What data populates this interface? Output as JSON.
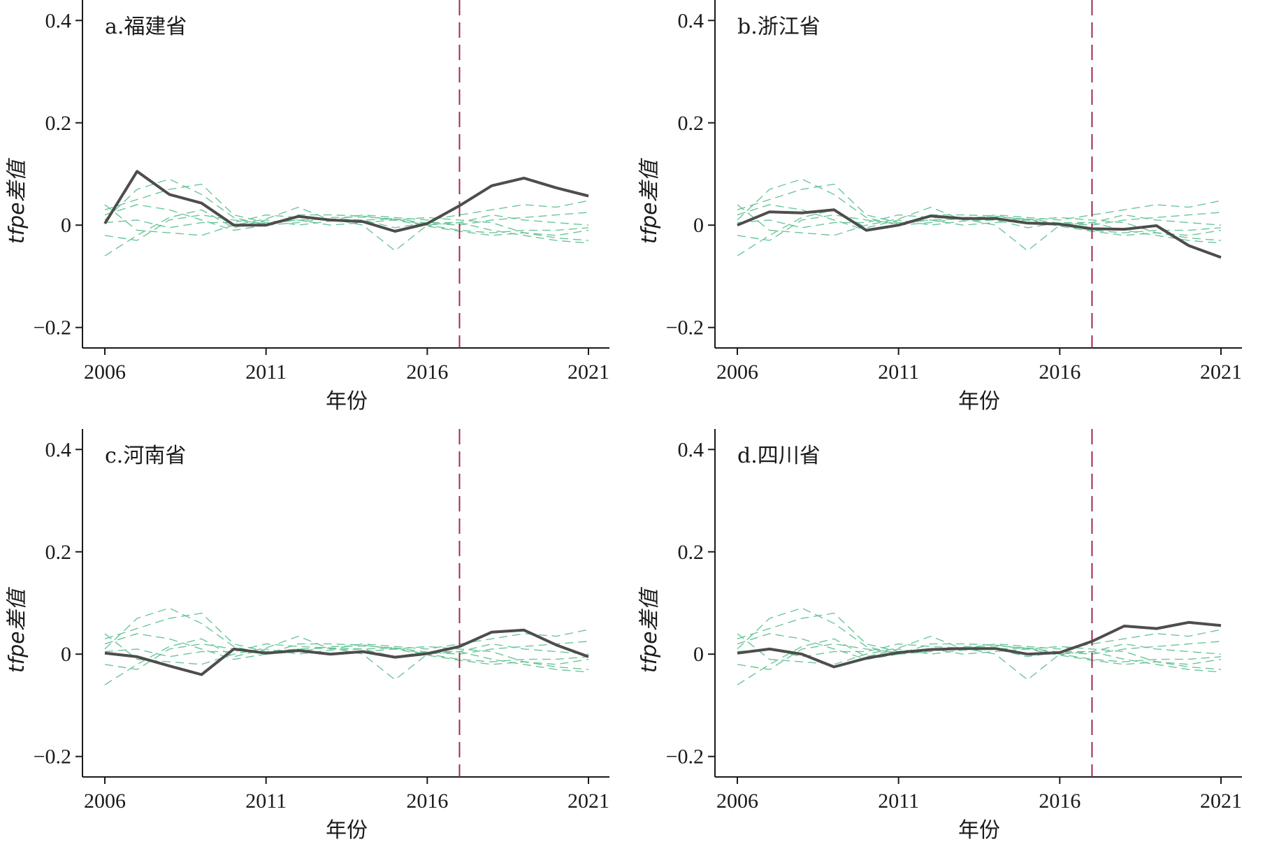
{
  "chart_data": [
    {
      "type": "line",
      "title": "a.福建省",
      "xlabel": "年份",
      "ylabel": "tfpe差值",
      "xlim": [
        2006,
        2021
      ],
      "ylim": [
        -0.24,
        0.44
      ],
      "x_ticks": [
        "2006",
        "2011",
        "2016",
        "2021"
      ],
      "y_ticks": [
        "0.4",
        "0.2",
        "0",
        "−0.2"
      ],
      "y_tick_values": [
        0.4,
        0.2,
        0,
        -0.2
      ],
      "treatment_year": 2017,
      "x": [
        2006,
        2007,
        2008,
        2009,
        2010,
        2011,
        2012,
        2013,
        2014,
        2015,
        2016,
        2017,
        2018,
        2019,
        2020,
        2021
      ],
      "series": [
        {
          "name": "福建省",
          "values": [
            0.003,
            0.105,
            0.06,
            0.043,
            0.0,
            0.0,
            0.017,
            0.01,
            0.007,
            -0.012,
            0.003,
            0.038,
            0.077,
            0.092,
            0.073,
            0.057
          ]
        }
      ],
      "placebo_series": [
        {
          "values": [
            0.03,
            0.05,
            0.07,
            0.08,
            0.02,
            0.005,
            0.01,
            0.012,
            0.01,
            0.012,
            0.004,
            0.0,
            0.01,
            0.015,
            0.02,
            0.025
          ]
        },
        {
          "values": [
            0.01,
            0.07,
            0.09,
            0.06,
            0.015,
            0.0,
            0.005,
            0.015,
            0.016,
            0.012,
            0.0,
            -0.01,
            -0.015,
            -0.01,
            -0.01,
            -0.005
          ]
        },
        {
          "values": [
            -0.02,
            -0.03,
            0.01,
            0.02,
            0.01,
            0.003,
            0.01,
            0.0,
            0.005,
            0.01,
            -0.002,
            -0.012,
            -0.02,
            -0.015,
            -0.025,
            -0.03
          ]
        },
        {
          "values": [
            0.04,
            -0.01,
            -0.015,
            -0.02,
            0.0,
            0.012,
            0.035,
            0.01,
            0.02,
            0.015,
            0.01,
            0.02,
            0.03,
            0.04,
            0.035,
            0.048
          ]
        },
        {
          "values": [
            -0.06,
            -0.02,
            0.015,
            0.03,
            -0.005,
            0.01,
            0.0,
            0.008,
            0.01,
            -0.005,
            0.005,
            0.005,
            -0.01,
            -0.02,
            -0.03,
            -0.035
          ]
        },
        {
          "values": [
            0.02,
            0.04,
            0.03,
            0.01,
            -0.01,
            0.0,
            0.02,
            0.02,
            0.018,
            0.01,
            0.015,
            0.01,
            0.005,
            -0.015,
            -0.02,
            -0.01
          ]
        },
        {
          "values": [
            0.005,
            0.01,
            -0.005,
            0.005,
            0.005,
            0.02,
            0.015,
            0.012,
            0.0,
            -0.05,
            0.0,
            0.005,
            0.02,
            0.01,
            0.005,
            0.0
          ]
        }
      ]
    },
    {
      "type": "line",
      "title": "b.浙江省",
      "xlabel": "年份",
      "ylabel": "tfpe差值",
      "xlim": [
        2006,
        2021
      ],
      "ylim": [
        -0.24,
        0.44
      ],
      "x_ticks": [
        "2006",
        "2011",
        "2016",
        "2021"
      ],
      "y_ticks": [
        "0.4",
        "0.2",
        "0",
        "−0.2"
      ],
      "y_tick_values": [
        0.4,
        0.2,
        0,
        -0.2
      ],
      "treatment_year": 2017,
      "x": [
        2006,
        2007,
        2008,
        2009,
        2010,
        2011,
        2012,
        2013,
        2014,
        2015,
        2016,
        2017,
        2018,
        2019,
        2020,
        2021
      ],
      "series": [
        {
          "name": "浙江省",
          "values": [
            0.0,
            0.026,
            0.024,
            0.03,
            -0.01,
            0.0,
            0.018,
            0.013,
            0.013,
            0.004,
            0.002,
            -0.007,
            -0.008,
            -0.001,
            -0.04,
            -0.063
          ]
        }
      ],
      "placebo_series": [
        {
          "values": [
            0.03,
            0.05,
            0.07,
            0.08,
            0.02,
            0.005,
            0.01,
            0.012,
            0.01,
            0.012,
            0.004,
            0.0,
            0.01,
            0.015,
            0.02,
            0.025
          ]
        },
        {
          "values": [
            0.01,
            0.07,
            0.09,
            0.06,
            0.015,
            0.0,
            0.005,
            0.015,
            0.016,
            0.012,
            0.0,
            -0.01,
            -0.015,
            -0.01,
            -0.01,
            -0.005
          ]
        },
        {
          "values": [
            -0.02,
            -0.03,
            0.01,
            0.02,
            0.01,
            0.003,
            0.01,
            0.0,
            0.005,
            0.01,
            -0.002,
            -0.012,
            -0.02,
            -0.015,
            -0.025,
            -0.03
          ]
        },
        {
          "values": [
            0.04,
            -0.01,
            -0.015,
            -0.02,
            0.0,
            0.012,
            0.035,
            0.01,
            0.02,
            0.015,
            0.01,
            0.02,
            0.03,
            0.04,
            0.035,
            0.048
          ]
        },
        {
          "values": [
            -0.06,
            -0.02,
            0.015,
            0.03,
            -0.005,
            0.01,
            0.0,
            0.008,
            0.01,
            -0.005,
            0.005,
            0.005,
            -0.01,
            -0.02,
            -0.03,
            -0.035
          ]
        },
        {
          "values": [
            0.02,
            0.04,
            0.03,
            0.01,
            -0.01,
            0.0,
            0.02,
            0.02,
            0.018,
            0.01,
            0.015,
            0.01,
            0.005,
            -0.015,
            -0.02,
            -0.01
          ]
        },
        {
          "values": [
            0.005,
            0.01,
            -0.005,
            0.005,
            0.005,
            0.02,
            0.015,
            0.012,
            0.0,
            -0.05,
            0.0,
            0.005,
            0.02,
            0.01,
            0.005,
            0.0
          ]
        }
      ]
    },
    {
      "type": "line",
      "title": "c.河南省",
      "xlabel": "年份",
      "ylabel": "tfpe差值",
      "xlim": [
        2006,
        2021
      ],
      "ylim": [
        -0.24,
        0.44
      ],
      "x_ticks": [
        "2006",
        "2011",
        "2016",
        "2021"
      ],
      "y_ticks": [
        "0.4",
        "0.2",
        "0",
        "−0.2"
      ],
      "y_tick_values": [
        0.4,
        0.2,
        0,
        -0.2
      ],
      "treatment_year": 2017,
      "x": [
        2006,
        2007,
        2008,
        2009,
        2010,
        2011,
        2012,
        2013,
        2014,
        2015,
        2016,
        2017,
        2018,
        2019,
        2020,
        2021
      ],
      "series": [
        {
          "name": "河南省",
          "values": [
            0.002,
            -0.005,
            -0.023,
            -0.04,
            0.01,
            0.002,
            0.007,
            0.0,
            0.005,
            -0.006,
            0.001,
            0.015,
            0.043,
            0.047,
            0.018,
            -0.005
          ]
        }
      ],
      "placebo_series": [
        {
          "values": [
            0.03,
            0.05,
            0.07,
            0.08,
            0.02,
            0.005,
            0.01,
            0.012,
            0.01,
            0.012,
            0.004,
            0.0,
            0.01,
            0.015,
            0.02,
            0.025
          ]
        },
        {
          "values": [
            0.01,
            0.07,
            0.09,
            0.06,
            0.015,
            0.0,
            0.005,
            0.015,
            0.016,
            0.012,
            0.0,
            -0.01,
            -0.015,
            -0.01,
            -0.01,
            -0.005
          ]
        },
        {
          "values": [
            -0.02,
            -0.03,
            0.01,
            0.02,
            0.01,
            0.003,
            0.01,
            0.0,
            0.005,
            0.01,
            -0.002,
            -0.012,
            -0.02,
            -0.015,
            -0.025,
            -0.03
          ]
        },
        {
          "values": [
            0.04,
            -0.01,
            -0.015,
            -0.02,
            0.0,
            0.012,
            0.035,
            0.01,
            0.02,
            0.015,
            0.01,
            0.02,
            0.03,
            0.04,
            0.035,
            0.048
          ]
        },
        {
          "values": [
            -0.06,
            -0.02,
            0.015,
            0.03,
            -0.005,
            0.01,
            0.0,
            0.008,
            0.01,
            -0.005,
            0.005,
            0.005,
            -0.01,
            -0.02,
            -0.03,
            -0.035
          ]
        },
        {
          "values": [
            0.02,
            0.04,
            0.03,
            0.01,
            -0.01,
            0.0,
            0.02,
            0.02,
            0.018,
            0.01,
            0.015,
            0.01,
            0.005,
            -0.015,
            -0.02,
            -0.01
          ]
        },
        {
          "values": [
            0.005,
            0.01,
            -0.005,
            0.005,
            0.005,
            0.02,
            0.015,
            0.012,
            0.0,
            -0.05,
            0.0,
            0.005,
            0.02,
            0.01,
            0.005,
            0.0
          ]
        }
      ]
    },
    {
      "type": "line",
      "title": "d.四川省",
      "xlabel": "年份",
      "ylabel": "tfpe差值",
      "xlim": [
        2006,
        2021
      ],
      "ylim": [
        -0.24,
        0.44
      ],
      "x_ticks": [
        "2006",
        "2011",
        "2016",
        "2021"
      ],
      "y_ticks": [
        "0.4",
        "0.2",
        "0",
        "−0.2"
      ],
      "y_tick_values": [
        0.4,
        0.2,
        0,
        -0.2
      ],
      "treatment_year": 2017,
      "x": [
        2006,
        2007,
        2008,
        2009,
        2010,
        2011,
        2012,
        2013,
        2014,
        2015,
        2016,
        2017,
        2018,
        2019,
        2020,
        2021
      ],
      "series": [
        {
          "name": "四川省",
          "values": [
            0.002,
            0.01,
            0.0,
            -0.025,
            -0.008,
            0.003,
            0.009,
            0.011,
            0.011,
            0.0,
            0.003,
            0.025,
            0.055,
            0.05,
            0.062,
            0.056
          ]
        }
      ],
      "placebo_series": [
        {
          "values": [
            0.03,
            0.05,
            0.07,
            0.08,
            0.02,
            0.005,
            0.01,
            0.012,
            0.01,
            0.012,
            0.004,
            0.0,
            0.01,
            0.015,
            0.02,
            0.025
          ]
        },
        {
          "values": [
            0.01,
            0.07,
            0.09,
            0.06,
            0.015,
            0.0,
            0.005,
            0.015,
            0.016,
            0.012,
            0.0,
            -0.01,
            -0.015,
            -0.01,
            -0.01,
            -0.005
          ]
        },
        {
          "values": [
            -0.02,
            -0.03,
            0.01,
            0.02,
            0.01,
            0.003,
            0.01,
            0.0,
            0.005,
            0.01,
            -0.002,
            -0.012,
            -0.02,
            -0.015,
            -0.025,
            -0.03
          ]
        },
        {
          "values": [
            0.04,
            -0.01,
            -0.015,
            -0.02,
            0.0,
            0.012,
            0.035,
            0.01,
            0.02,
            0.015,
            0.01,
            0.02,
            0.03,
            0.04,
            0.035,
            0.048
          ]
        },
        {
          "values": [
            -0.06,
            -0.02,
            0.015,
            0.03,
            -0.005,
            0.01,
            0.0,
            0.008,
            0.01,
            -0.005,
            0.005,
            0.005,
            -0.01,
            -0.02,
            -0.03,
            -0.035
          ]
        },
        {
          "values": [
            0.02,
            0.04,
            0.03,
            0.01,
            -0.01,
            0.0,
            0.02,
            0.02,
            0.018,
            0.01,
            0.015,
            0.01,
            0.005,
            -0.015,
            -0.02,
            -0.01
          ]
        },
        {
          "values": [
            0.005,
            0.01,
            -0.005,
            0.005,
            0.005,
            0.02,
            0.015,
            0.012,
            0.0,
            -0.05,
            0.0,
            0.005,
            0.02,
            0.01,
            0.005,
            0.0
          ]
        }
      ]
    }
  ],
  "style": {
    "treated_color": "#4d4d4d",
    "placebo_color": "#5cc08e",
    "cutoff_color": "#9e2a4d",
    "axis_color": "#1a1a1a"
  }
}
